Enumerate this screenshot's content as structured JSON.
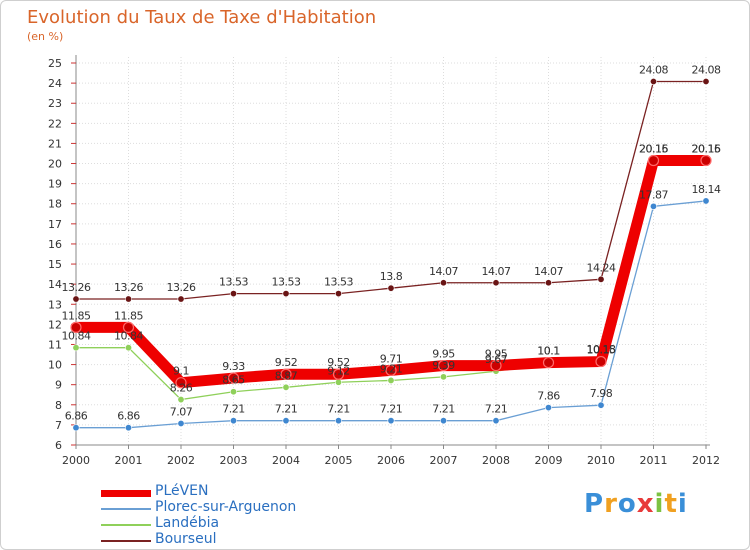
{
  "chart_data": {
    "type": "line",
    "title": "Evolution du Taux de Taxe d'Habitation",
    "subtitle": "(en %)",
    "xlabel": "",
    "ylabel": "",
    "ylim": [
      6,
      25
    ],
    "yticks": [
      "6",
      "7",
      "8",
      "9",
      "10",
      "11",
      "12",
      "13",
      "14",
      "15",
      "16",
      "17",
      "18",
      "19",
      "20",
      "21",
      "22",
      "23",
      "24",
      "25"
    ],
    "categories": [
      "2000",
      "2001",
      "2002",
      "2003",
      "2004",
      "2005",
      "2006",
      "2007",
      "2008",
      "2009",
      "2010",
      "2011",
      "2012"
    ],
    "legend_position": "bottom-left",
    "series": [
      {
        "name": "Bourseul",
        "color": "#7a2222",
        "values": [
          13.26,
          13.26,
          13.26,
          13.53,
          13.53,
          13.53,
          13.8,
          14.07,
          14.07,
          14.07,
          14.24,
          24.08,
          24.08
        ],
        "labels": [
          "13.26",
          "13.26",
          "13.26",
          "13.53",
          "13.53",
          "13.53",
          "13.8",
          "14.07",
          "14.07",
          "14.07",
          "14.24",
          "24.08",
          "24.08"
        ]
      },
      {
        "name": "Plorec-sur-Arguenon",
        "color": "#6a9fd4",
        "values": [
          6.86,
          6.86,
          7.07,
          7.21,
          7.21,
          7.21,
          7.21,
          7.21,
          7.21,
          7.86,
          7.98,
          17.87,
          18.14
        ],
        "labels": [
          "6.86",
          "6.86",
          "7.07",
          "7.21",
          "7.21",
          "7.21",
          "7.21",
          "7.21",
          "7.21",
          "7.86",
          "7.98",
          "17.87",
          "18.14"
        ]
      },
      {
        "name": "Landébia",
        "color": "#8fd05a",
        "values": [
          10.84,
          10.84,
          8.26,
          8.65,
          8.87,
          9.12,
          9.21,
          9.39,
          9.67,
          10.1,
          10.18,
          20.16,
          20.16
        ],
        "labels": [
          "10.84",
          "10.84",
          "8.26",
          "8.65",
          "8.87",
          "9.12",
          "9.21",
          "9.39",
          "9.67",
          "10.1",
          "10.18",
          "20.16",
          "20.16"
        ]
      },
      {
        "name": "PLéVEN",
        "color": "#ee0000",
        "values": [
          11.85,
          11.85,
          9.1,
          9.33,
          9.52,
          9.52,
          9.71,
          9.95,
          9.95,
          10.1,
          10.15,
          20.15,
          20.15
        ],
        "labels": [
          "11.85",
          "11.85",
          "9.1",
          "9.33",
          "9.52",
          "9.52",
          "9.71",
          "9.95",
          "9.95",
          "10.1",
          "10.15",
          "20.15",
          "20.15"
        ]
      }
    ],
    "legend": [
      {
        "name": "PLéVEN",
        "color": "#ee0000"
      },
      {
        "name": "Plorec-sur-Arguenon",
        "color": "#6a9fd4"
      },
      {
        "name": "Landébia",
        "color": "#8fd05a"
      },
      {
        "name": "Bourseul",
        "color": "#7a2222"
      }
    ]
  },
  "brand": {
    "letters": [
      "P",
      "r",
      "o",
      "x",
      "i",
      "t",
      "i"
    ],
    "colors": [
      "#3a8fd8",
      "#f0a020",
      "#3a8fd8",
      "#e83a3a",
      "#7cc242",
      "#f0a020",
      "#3a8fd8"
    ]
  }
}
